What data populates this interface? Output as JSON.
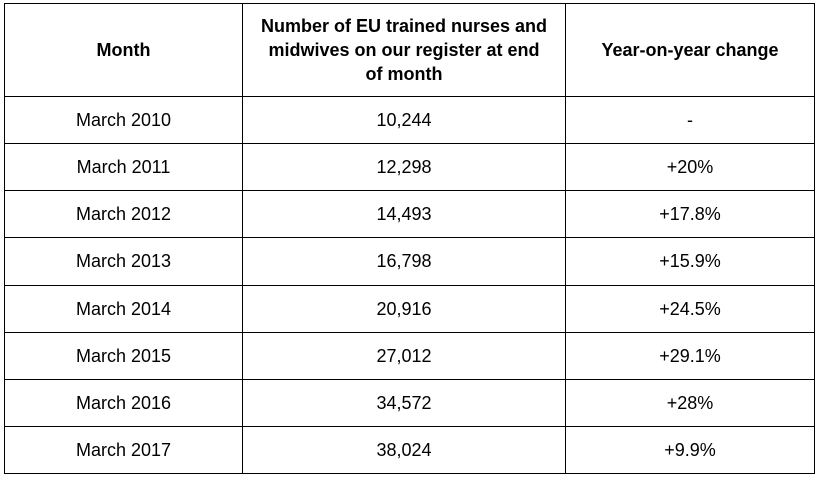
{
  "table": {
    "headers": {
      "month": "Month",
      "count": "Number of EU trained nurses and midwives on our register at end of month",
      "change": "Year-on-year change"
    },
    "rows": [
      {
        "month": "March 2010",
        "count": "10,244",
        "change": "-"
      },
      {
        "month": "March 2011",
        "count": "12,298",
        "change": "+20%"
      },
      {
        "month": "March 2012",
        "count": "14,493",
        "change": "+17.8%"
      },
      {
        "month": "March 2013",
        "count": "16,798",
        "change": "+15.9%"
      },
      {
        "month": "March 2014",
        "count": "20,916",
        "change": "+24.5%"
      },
      {
        "month": "March 2015",
        "count": "27,012",
        "change": "+29.1%"
      },
      {
        "month": "March 2016",
        "count": "34,572",
        "change": "+28%"
      },
      {
        "month": "March 2017",
        "count": "38,024",
        "change": "+9.9%"
      }
    ]
  }
}
